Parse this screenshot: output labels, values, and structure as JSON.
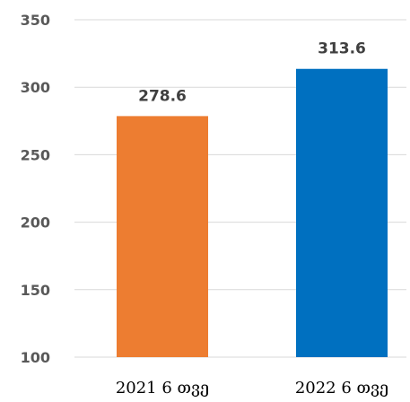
{
  "chart_data": {
    "type": "bar",
    "categories": [
      "2021 6 თვე",
      "2022 6 თვე"
    ],
    "values": [
      278.6,
      313.6
    ],
    "value_labels": [
      "278.6",
      "313.6"
    ],
    "colors": [
      "#ED7D31",
      "#0070C0"
    ],
    "ylim": [
      100,
      350
    ],
    "yticks": [
      100,
      150,
      200,
      250,
      300,
      350
    ],
    "grid": true,
    "gridline_color": "#D9D9D9",
    "title": "",
    "xlabel": "",
    "ylabel": ""
  }
}
